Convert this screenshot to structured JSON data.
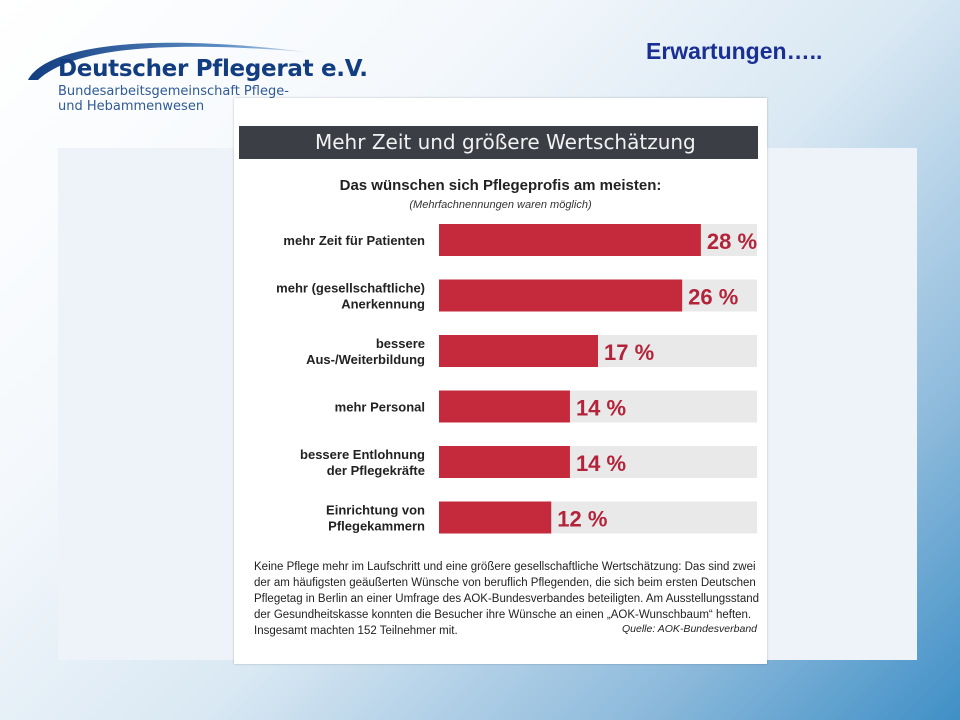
{
  "logo": {
    "name": "Deutscher Pflegerat e.V.",
    "sub_line1": "Bundesarbeitsgemeinschaft Pflege-",
    "sub_line2": "und Hebammenwesen",
    "color": "#123d80"
  },
  "slide_title": "Erwartungen…..",
  "clipping": {
    "banner": "Mehr Zeit und größere Wertschätzung",
    "caption": "Keine Pflege mehr im Laufschritt und eine größere gesellschaftliche Wertschätzung: Das sind zwei der am häufigsten geäußerten Wünsche von beruflich Pflegenden, die sich beim ersten Deutschen Pflegetag in Berlin an einer Umfrage des AOK-Bundesverbandes beteiligten. Am Ausstellungsstand der Gesundheitskasse konnten die Besucher ihre Wünsche an einen „AOK-Wunschbaum“ heften. Insgesamt machten 152 Teilnehmer mit.",
    "source": "Quelle: AOK-Bundesverband"
  },
  "chart_data": {
    "type": "bar",
    "orientation": "horizontal",
    "title": "Das wünschen sich Pflegeprofis am meisten:",
    "subtitle": "(Mehrfachnennungen waren möglich)",
    "categories": [
      [
        "mehr Zeit für Patienten"
      ],
      [
        "mehr (gesellschaftliche)",
        "Anerkennung"
      ],
      [
        "bessere",
        "Aus-/Weiterbildung"
      ],
      [
        "mehr Personal"
      ],
      [
        "bessere Entlohnung",
        "der Pflegekräfte"
      ],
      [
        "Einrichtung von",
        "Pflegekammern"
      ]
    ],
    "values": [
      28,
      26,
      17,
      14,
      14,
      12
    ],
    "value_labels": [
      "28 %",
      "26 %",
      "17 %",
      "14 %",
      "14 %",
      "12 %"
    ],
    "xlim": [
      0,
      34
    ],
    "grid": false,
    "bar_color": "#c42a3c",
    "track_color": "#e9e9e9",
    "label_color": "#b3233a"
  }
}
